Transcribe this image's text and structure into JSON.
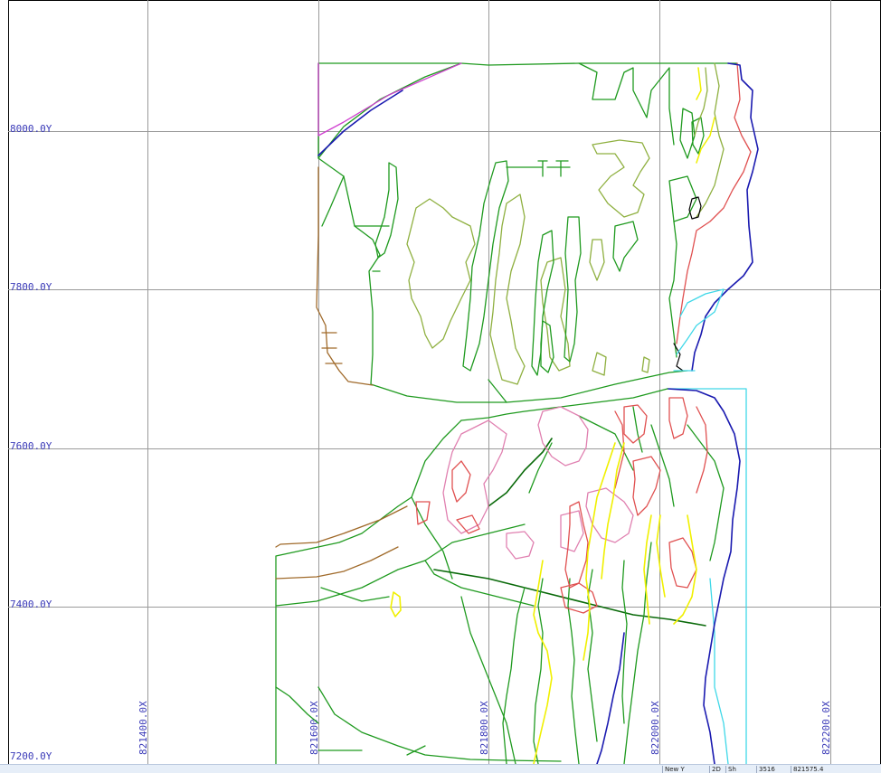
{
  "map": {
    "y_labels": [
      "8000.0Y",
      "7800.0Y",
      "7600.0Y",
      "7400.0Y",
      "7200.0Y"
    ],
    "x_labels": [
      "821400.0X",
      "821600.0X",
      "821800.0X",
      "822000.0X",
      "822200.0X"
    ],
    "colors": {
      "grid": "#9a9a9a",
      "label": "#3a3ab8",
      "green": "#1f9a1f",
      "olive": "#8fb040",
      "pink": "#e080b0",
      "red": "#e05050",
      "yellow": "#f0f000",
      "blue": "#1a1ab0",
      "cyan": "#40d8e8",
      "brown": "#a06a2a",
      "magenta": "#d040d0"
    }
  },
  "statusbar": {
    "cells": [
      "New Y",
      "2D",
      "Sh",
      "3516",
      "821575.4"
    ]
  }
}
